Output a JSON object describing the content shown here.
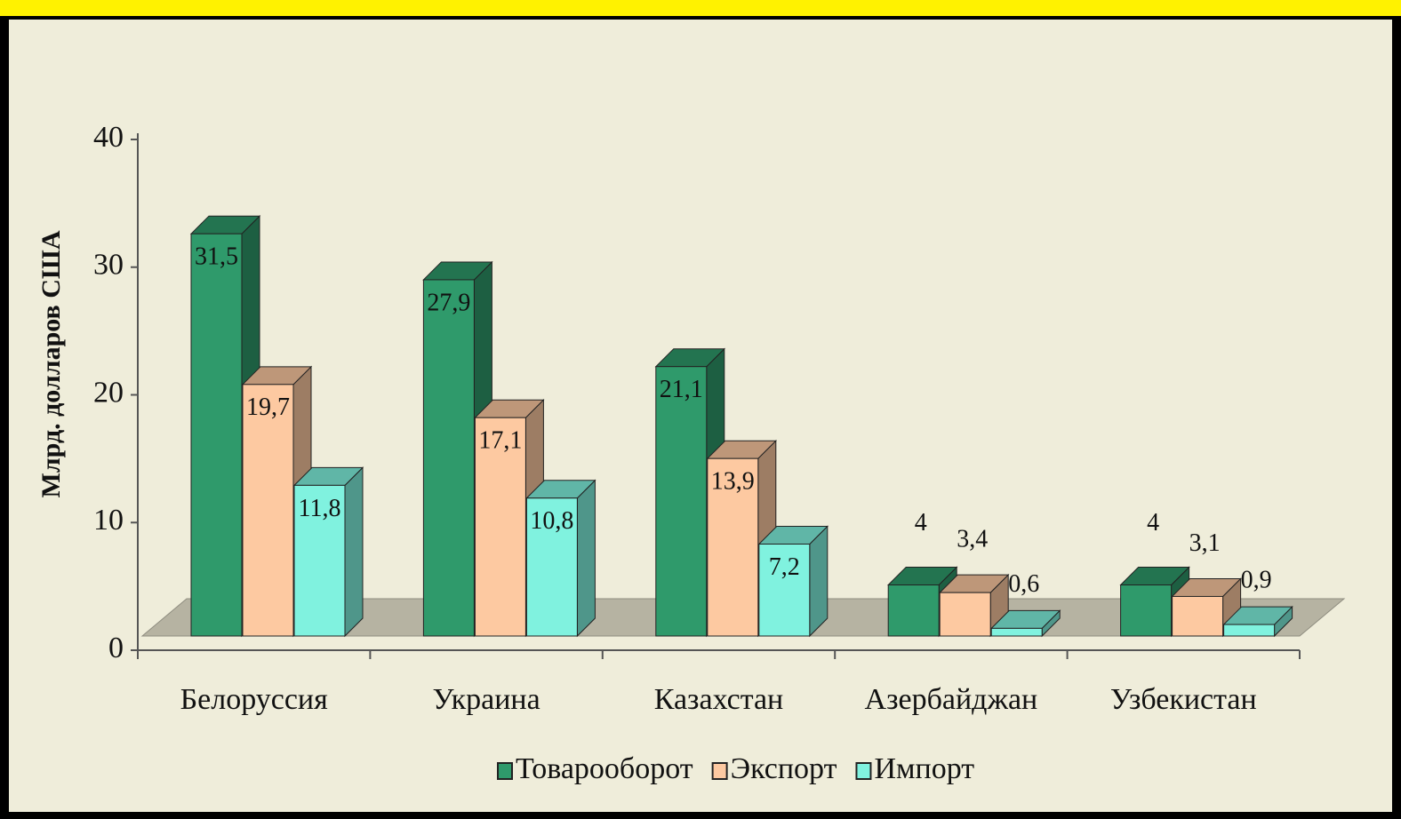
{
  "chart_data": {
    "type": "bar3d",
    "y_axis_label": "Млрд. долларов США",
    "categories": [
      "Белоруссия",
      "Украина",
      "Казахстан",
      "Азербайджан",
      "Узбекистан"
    ],
    "series": [
      {
        "name": "Товарооборот",
        "color": "#2f9a6b",
        "values": [
          31.5,
          27.9,
          21.1,
          4,
          4
        ],
        "value_labels": [
          "31,5",
          "27,9",
          "21,1",
          "4",
          "4"
        ]
      },
      {
        "name": "Экспорт",
        "color": "#fdc9a1",
        "values": [
          19.7,
          17.1,
          13.9,
          3.4,
          3.1
        ],
        "value_labels": [
          "19,7",
          "17,1",
          "13,9",
          "3,4",
          "3,1"
        ]
      },
      {
        "name": "Импорт",
        "color": "#80f2df",
        "values": [
          11.8,
          10.8,
          7.2,
          0.6,
          0.9
        ],
        "value_labels": [
          "11,8",
          "10,8",
          "7,2",
          "0,6",
          "0,9"
        ]
      }
    ],
    "ylim": [
      0,
      40
    ],
    "yticks": [
      0,
      10,
      20,
      30,
      40
    ],
    "legend": "bottom"
  }
}
